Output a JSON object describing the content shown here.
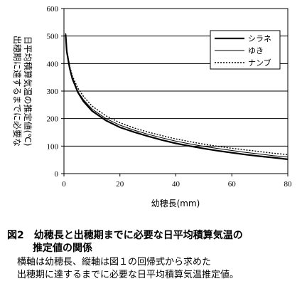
{
  "chart_data": {
    "type": "line",
    "ylabel_lines": [
      "出穂期に達するまでに必要な",
      "日平均積算気温の推定値(℃)"
    ],
    "xlabel": "幼穂長(mm)",
    "xlim": [
      0,
      80
    ],
    "ylim": [
      0,
      600
    ],
    "x_ticks": [
      "0",
      "20",
      "40",
      "60",
      "80"
    ],
    "y_ticks": [
      "0",
      "100",
      "200",
      "300",
      "400",
      "500",
      "600"
    ],
    "grid": "horizontal",
    "legend_position": "top-right",
    "series": [
      {
        "name": "シラネ",
        "style": "thick",
        "x": [
          0.6,
          1,
          2,
          3,
          5,
          7,
          10,
          15,
          20,
          25,
          30,
          35,
          40,
          45,
          50,
          55,
          60,
          65,
          70,
          75,
          80
        ],
        "y": [
          505,
          445,
          385,
          345,
          295,
          262,
          228,
          193,
          168,
          151,
          136,
          122,
          110,
          100,
          91,
          83,
          76,
          69,
          63,
          58,
          52
        ]
      },
      {
        "name": "ゆき",
        "style": "thin",
        "x": [
          0.6,
          1,
          2,
          3,
          5,
          7,
          10,
          15,
          20,
          25,
          30,
          35,
          40,
          45,
          50,
          55,
          60,
          65,
          70,
          75,
          80
        ],
        "y": [
          500,
          440,
          380,
          342,
          298,
          268,
          235,
          200,
          176,
          158,
          143,
          130,
          118,
          108,
          99,
          91,
          84,
          77,
          71,
          65,
          60
        ]
      },
      {
        "name": "ナンブ",
        "style": "dotted",
        "x": [
          0.6,
          1,
          2,
          3,
          5,
          7,
          10,
          15,
          20,
          25,
          30,
          35,
          40,
          45,
          50,
          55,
          60,
          65,
          70,
          75,
          80
        ],
        "y": [
          510,
          450,
          392,
          355,
          310,
          280,
          246,
          210,
          185,
          166,
          151,
          138,
          126,
          116,
          107,
          99,
          92,
          86,
          80,
          74,
          69
        ]
      }
    ]
  },
  "caption": {
    "title_line1": "図2　幼穂長と出穂期までに必要な日平均積算気温の",
    "title_line2": "推定値の関係",
    "body_line1": "横軸は幼穂長、縦軸は図１の回帰式から求めた",
    "body_line2": "出穂期に達するまでに必要な日平均積算気温推定値。"
  }
}
